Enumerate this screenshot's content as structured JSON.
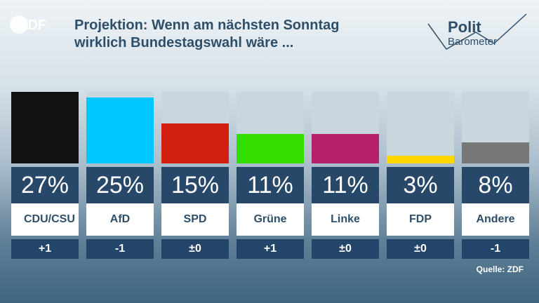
{
  "header": {
    "title_line1": "Projektion: Wenn am nächsten Sonntag",
    "title_line2": "wirklich Bundestagswahl wäre ...",
    "brand_logo_text": "ZDF",
    "politbarometer_line1": "Polit",
    "politbarometer_line2": "Barometer"
  },
  "source": "Quelle: ZDF",
  "chart_data": {
    "type": "bar",
    "title": "Projektion: Wenn am nächsten Sonntag wirklich Bundestagswahl wäre ...",
    "categories": [
      "CDU/CSU",
      "AfD",
      "SPD",
      "Grüne",
      "Linke",
      "FDP",
      "Andere"
    ],
    "values": [
      27,
      25,
      15,
      11,
      11,
      3,
      8
    ],
    "value_labels": [
      "27%",
      "25%",
      "15%",
      "11%",
      "11%",
      "3%",
      "8%"
    ],
    "changes": [
      "+1",
      "-1",
      "±0",
      "+1",
      "±0",
      "±0",
      "-1"
    ],
    "colors": [
      "#111111",
      "#00c8ff",
      "#d21f10",
      "#33dd00",
      "#b4206a",
      "#ffd700",
      "#777777"
    ],
    "ylim": [
      0,
      27
    ],
    "unit": "%"
  }
}
